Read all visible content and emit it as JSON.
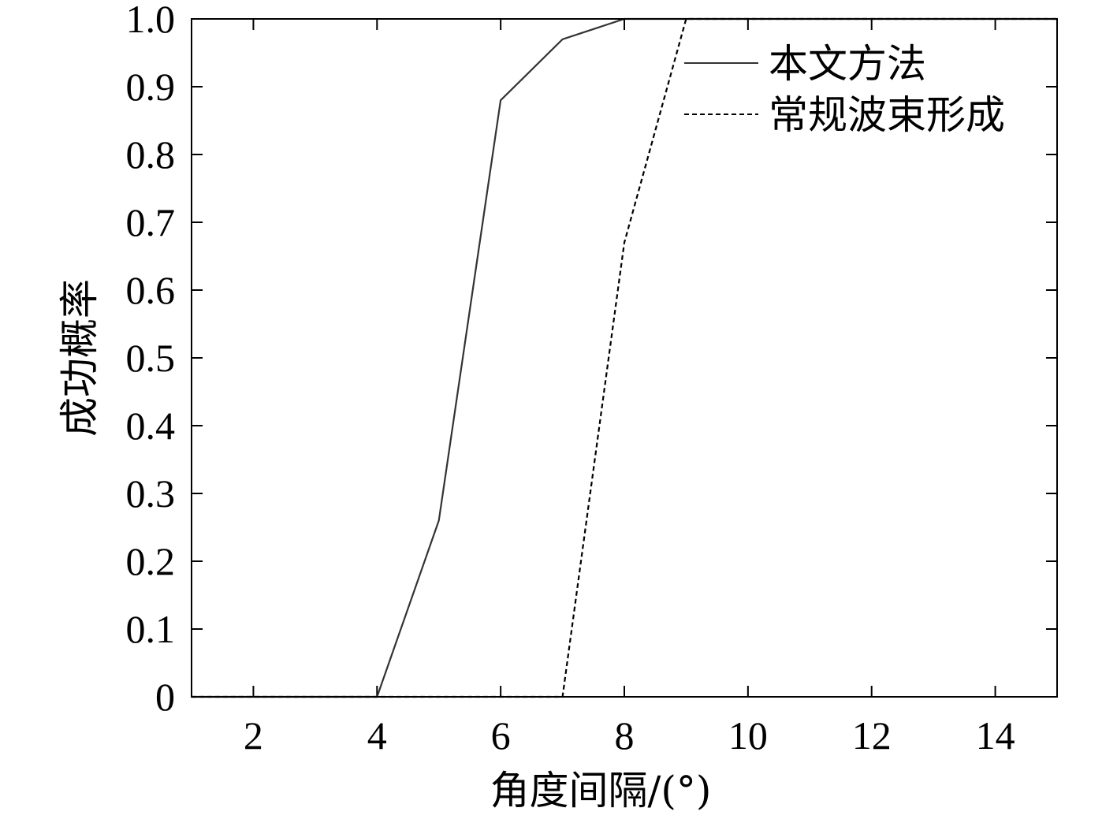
{
  "chart_data": {
    "type": "line",
    "title": "",
    "xlabel": "角度间隔/(°)",
    "ylabel": "成功概率",
    "xlim": [
      1,
      15
    ],
    "ylim": [
      0,
      1.0
    ],
    "xticks": [
      2,
      4,
      6,
      8,
      10,
      12,
      14
    ],
    "xtick_labels": [
      "2",
      "4",
      "6",
      "8",
      "10",
      "12",
      "14"
    ],
    "yticks": [
      0,
      0.1,
      0.2,
      0.3,
      0.4,
      0.5,
      0.6,
      0.7,
      0.8,
      0.9,
      1.0
    ],
    "ytick_labels": [
      "0",
      "0.1",
      "0.2",
      "0.3",
      "0.4",
      "0.5",
      "0.6",
      "0.7",
      "0.8",
      "0.9",
      "1.0"
    ],
    "grid": false,
    "legend_position": "top-right",
    "series": [
      {
        "name": "本文方法",
        "style": "solid",
        "color": "#333333",
        "x": [
          1,
          2,
          3,
          4,
          5,
          6,
          7,
          8,
          9,
          10,
          11,
          12,
          13,
          14,
          15
        ],
        "y": [
          0,
          0,
          0,
          0,
          0.26,
          0.88,
          0.97,
          1.0,
          1.0,
          1.0,
          1.0,
          1.0,
          1.0,
          1.0,
          1.0
        ]
      },
      {
        "name": "常规波束形成",
        "style": "dashed",
        "color": "#000000",
        "x": [
          1,
          2,
          3,
          4,
          5,
          6,
          7,
          8,
          9,
          10,
          11,
          12,
          13,
          14,
          15
        ],
        "y": [
          0,
          0,
          0,
          0,
          0,
          0,
          0,
          0.67,
          1.0,
          1.0,
          1.0,
          1.0,
          1.0,
          1.0,
          1.0
        ]
      }
    ]
  }
}
